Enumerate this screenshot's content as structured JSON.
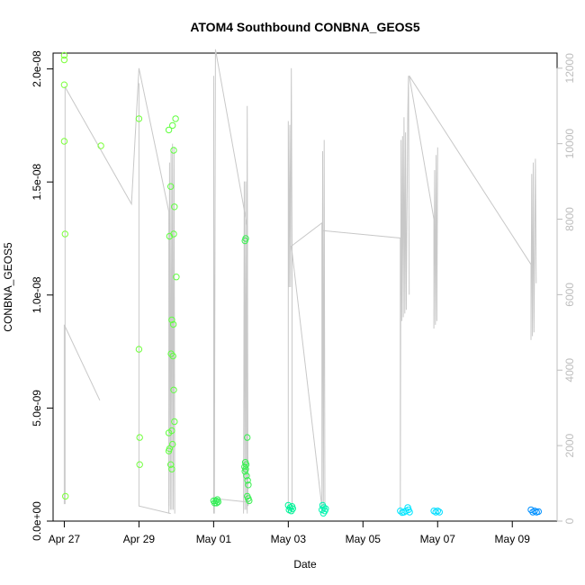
{
  "chart_data": {
    "type": "scatter",
    "title": "ATOM4 Southbound CONBNA_GEOS5",
    "xlabel": "Date",
    "ylabel": "CONBNA_GEOS5",
    "x_unit": "days",
    "xlim": [
      26.7,
      40.2
    ],
    "ylim": [
      0,
      2.07e-08
    ],
    "x_ticks": [
      {
        "value": 27,
        "label": "Apr 27"
      },
      {
        "value": 29,
        "label": "Apr 29"
      },
      {
        "value": 31,
        "label": "May 01"
      },
      {
        "value": 33,
        "label": "May 03"
      },
      {
        "value": 35,
        "label": "May 05"
      },
      {
        "value": 37,
        "label": "May 07"
      },
      {
        "value": 39,
        "label": "May 09"
      }
    ],
    "y_ticks": [
      {
        "value": 0,
        "label": "0.0e+00"
      },
      {
        "value": 5e-09,
        "label": "5.0e-09"
      },
      {
        "value": 1e-08,
        "label": "1.0e-08"
      },
      {
        "value": 1.5e-08,
        "label": "1.5e-08"
      },
      {
        "value": 2e-08,
        "label": "2.0e-08"
      }
    ],
    "y2lim": [
      0,
      12400
    ],
    "y2_ticks": [
      0,
      2000,
      4000,
      6000,
      8000,
      10000,
      12000
    ],
    "grid": false,
    "colors": {
      "altitude_line": "#c8c8c8",
      "green": "#7cff3a",
      "green_mid": "#33ee55",
      "teal": "#00ffaa",
      "cyan": "#00e5ff",
      "blue": "#0088ff"
    },
    "series": [
      {
        "role": "CONBNA_GEOS5 points",
        "points": [
          {
            "x": 27.0,
            "y": 2.06e-08,
            "c": "#7cff3a"
          },
          {
            "x": 27.0,
            "y": 2.04e-08,
            "c": "#7cff3a"
          },
          {
            "x": 27.0,
            "y": 1.93e-08,
            "c": "#7cff3a"
          },
          {
            "x": 27.0,
            "y": 1.68e-08,
            "c": "#7cff3a"
          },
          {
            "x": 27.02,
            "y": 1.27e-08,
            "c": "#7cff3a"
          },
          {
            "x": 27.03,
            "y": 1.1e-09,
            "c": "#7cff3a"
          },
          {
            "x": 27.98,
            "y": 1.66e-08,
            "c": "#7cff3a"
          },
          {
            "x": 29.0,
            "y": 1.78e-08,
            "c": "#70ff3c"
          },
          {
            "x": 29.0,
            "y": 7.6e-09,
            "c": "#70ff3c"
          },
          {
            "x": 29.02,
            "y": 3.7e-09,
            "c": "#70ff3c"
          },
          {
            "x": 29.02,
            "y": 2.5e-09,
            "c": "#70ff3c"
          },
          {
            "x": 29.8,
            "y": 1.73e-08,
            "c": "#60ff40"
          },
          {
            "x": 29.85,
            "y": 1.48e-08,
            "c": "#60ff40"
          },
          {
            "x": 29.82,
            "y": 1.26e-08,
            "c": "#60ff40"
          },
          {
            "x": 29.9,
            "y": 1.75e-08,
            "c": "#60ff40"
          },
          {
            "x": 29.98,
            "y": 1.78e-08,
            "c": "#60ff40"
          },
          {
            "x": 29.93,
            "y": 1.64e-08,
            "c": "#60ff40"
          },
          {
            "x": 29.95,
            "y": 1.39e-08,
            "c": "#60ff40"
          },
          {
            "x": 29.93,
            "y": 1.27e-08,
            "c": "#60ff40"
          },
          {
            "x": 30.0,
            "y": 1.08e-08,
            "c": "#60ff40"
          },
          {
            "x": 29.88,
            "y": 8.9e-09,
            "c": "#60ff40"
          },
          {
            "x": 29.92,
            "y": 8.7e-09,
            "c": "#60ff40"
          },
          {
            "x": 29.86,
            "y": 7.4e-09,
            "c": "#60ff40"
          },
          {
            "x": 29.91,
            "y": 7.3e-09,
            "c": "#60ff40"
          },
          {
            "x": 29.93,
            "y": 5.8e-09,
            "c": "#60ff40"
          },
          {
            "x": 29.95,
            "y": 4.4e-09,
            "c": "#60ff40"
          },
          {
            "x": 29.8,
            "y": 3.9e-09,
            "c": "#60ff40"
          },
          {
            "x": 29.88,
            "y": 4e-09,
            "c": "#60ff40"
          },
          {
            "x": 29.82,
            "y": 3.2e-09,
            "c": "#60ff40"
          },
          {
            "x": 29.9,
            "y": 3.4e-09,
            "c": "#60ff40"
          },
          {
            "x": 29.8,
            "y": 3.1e-09,
            "c": "#60ff40"
          },
          {
            "x": 29.85,
            "y": 2.5e-09,
            "c": "#60ff40"
          },
          {
            "x": 29.88,
            "y": 2.3e-09,
            "c": "#60ff40"
          },
          {
            "x": 31.0,
            "y": 9e-10,
            "c": "#33ee55"
          },
          {
            "x": 31.03,
            "y": 8e-10,
            "c": "#33ee55"
          },
          {
            "x": 31.06,
            "y": 9e-10,
            "c": "#33ee55"
          },
          {
            "x": 31.08,
            "y": 8e-10,
            "c": "#33ee55"
          },
          {
            "x": 31.1,
            "y": 9.5e-10,
            "c": "#33ee55"
          },
          {
            "x": 31.12,
            "y": 8.5e-10,
            "c": "#33ee55"
          },
          {
            "x": 31.84,
            "y": 1.24e-08,
            "c": "#38f050"
          },
          {
            "x": 31.86,
            "y": 1.25e-08,
            "c": "#38f050"
          },
          {
            "x": 31.9,
            "y": 3.7e-09,
            "c": "#38f050"
          },
          {
            "x": 31.85,
            "y": 2.6e-09,
            "c": "#38f050"
          },
          {
            "x": 31.87,
            "y": 2.5e-09,
            "c": "#38f050"
          },
          {
            "x": 31.83,
            "y": 2.4e-09,
            "c": "#38f050"
          },
          {
            "x": 31.86,
            "y": 2.3e-09,
            "c": "#38f050"
          },
          {
            "x": 31.84,
            "y": 2.2e-09,
            "c": "#38f050"
          },
          {
            "x": 31.88,
            "y": 2e-09,
            "c": "#38f050"
          },
          {
            "x": 31.91,
            "y": 1.8e-09,
            "c": "#38f050"
          },
          {
            "x": 31.93,
            "y": 1.6e-09,
            "c": "#38f050"
          },
          {
            "x": 31.9,
            "y": 1.1e-09,
            "c": "#38f050"
          },
          {
            "x": 31.93,
            "y": 1e-09,
            "c": "#38f050"
          },
          {
            "x": 31.95,
            "y": 9e-10,
            "c": "#38f050"
          },
          {
            "x": 33.0,
            "y": 7e-10,
            "c": "#00f59a"
          },
          {
            "x": 33.05,
            "y": 6e-10,
            "c": "#00f59a"
          },
          {
            "x": 33.1,
            "y": 6.5e-10,
            "c": "#00f59a"
          },
          {
            "x": 33.02,
            "y": 5e-10,
            "c": "#00f59a"
          },
          {
            "x": 33.08,
            "y": 4.5e-10,
            "c": "#00f59a"
          },
          {
            "x": 33.12,
            "y": 5.5e-10,
            "c": "#00f59a"
          },
          {
            "x": 33.92,
            "y": 7e-10,
            "c": "#00f5b0"
          },
          {
            "x": 33.95,
            "y": 6e-10,
            "c": "#00f5b0"
          },
          {
            "x": 33.9,
            "y": 5e-10,
            "c": "#00f5b0"
          },
          {
            "x": 33.98,
            "y": 4.5e-10,
            "c": "#00f5b0"
          },
          {
            "x": 33.94,
            "y": 3.5e-10,
            "c": "#00f5b0"
          },
          {
            "x": 34.0,
            "y": 5.5e-10,
            "c": "#00f5b0"
          },
          {
            "x": 36.0,
            "y": 4.5e-10,
            "c": "#00e5ff"
          },
          {
            "x": 36.05,
            "y": 3.8e-10,
            "c": "#00e5ff"
          },
          {
            "x": 36.1,
            "y": 4e-10,
            "c": "#00e5ff"
          },
          {
            "x": 36.15,
            "y": 4.5e-10,
            "c": "#00e5ff"
          },
          {
            "x": 36.2,
            "y": 6e-10,
            "c": "#00e5ff"
          },
          {
            "x": 36.22,
            "y": 5e-10,
            "c": "#00e5ff"
          },
          {
            "x": 36.25,
            "y": 4e-10,
            "c": "#00e5ff"
          },
          {
            "x": 36.9,
            "y": 4.5e-10,
            "c": "#00ddff"
          },
          {
            "x": 36.95,
            "y": 4e-10,
            "c": "#00ddff"
          },
          {
            "x": 37.0,
            "y": 4.5e-10,
            "c": "#00ddff"
          },
          {
            "x": 37.05,
            "y": 4e-10,
            "c": "#00ddff"
          },
          {
            "x": 39.5,
            "y": 5e-10,
            "c": "#0090ff"
          },
          {
            "x": 39.55,
            "y": 4e-10,
            "c": "#0090ff"
          },
          {
            "x": 39.6,
            "y": 4.5e-10,
            "c": "#0090ff"
          },
          {
            "x": 39.65,
            "y": 4e-10,
            "c": "#0090ff"
          },
          {
            "x": 39.7,
            "y": 4.2e-10,
            "c": "#0090ff"
          }
        ]
      },
      {
        "role": "altitude (right axis)",
        "y_axis": "right",
        "segments": [
          [
            [
              27.0,
              5200
            ],
            [
              27.0,
              450
            ],
            [
              27.0,
              5200
            ],
            [
              27.95,
              3200
            ]
          ],
          [
            [
              27.02,
              450
            ],
            [
              27.02,
              11500
            ],
            [
              28.8,
              8400
            ],
            [
              29.0,
              12000
            ],
            [
              29.8,
              8200
            ],
            [
              29.8,
              400
            ]
          ],
          [
            [
              29.0,
              400
            ],
            [
              29.0,
              11600
            ],
            [
              29.0,
              400
            ],
            [
              29.85,
              200
            ]
          ],
          [
            [
              29.8,
              200
            ],
            [
              29.82,
              9500
            ],
            [
              29.84,
              300
            ],
            [
              29.86,
              9800
            ],
            [
              29.88,
              300
            ],
            [
              29.9,
              10000
            ],
            [
              29.92,
              300
            ],
            [
              29.94,
              9900
            ],
            [
              29.96,
              200
            ]
          ],
          [
            [
              31.0,
              200
            ],
            [
              31.0,
              11800
            ],
            [
              31.02,
              200
            ],
            [
              31.05,
              12500
            ],
            [
              31.9,
              7800
            ],
            [
              31.9,
              200
            ]
          ],
          [
            [
              31.8,
              200
            ],
            [
              31.82,
              9000
            ],
            [
              31.84,
              300
            ],
            [
              31.86,
              9000
            ],
            [
              31.88,
              300
            ],
            [
              31.9,
              11000
            ],
            [
              31.92,
              400
            ],
            [
              31.94,
              500
            ],
            [
              31.0,
              600
            ]
          ],
          [
            [
              33.0,
              200
            ],
            [
              33.0,
              10600
            ],
            [
              33.02,
              6200
            ],
            [
              33.04,
              10500
            ],
            [
              33.06,
              6200
            ],
            [
              33.08,
              12000
            ],
            [
              33.1,
              7300
            ],
            [
              33.1,
              200
            ]
          ],
          [
            [
              33.1,
              7300
            ],
            [
              33.9,
              7900
            ],
            [
              33.9,
              200
            ],
            [
              33.92,
              9800
            ],
            [
              33.94,
              300
            ],
            [
              33.96,
              10100
            ],
            [
              33.98,
              300
            ]
          ],
          [
            [
              33.08,
              7300
            ],
            [
              33.92,
              200
            ]
          ],
          [
            [
              33.9,
              7700
            ],
            [
              36.0,
              7500
            ],
            [
              36.0,
              200
            ],
            [
              36.02,
              10100
            ],
            [
              36.04,
              5300
            ],
            [
              36.06,
              10200
            ],
            [
              36.08,
              5400
            ],
            [
              36.1,
              10700
            ],
            [
              36.12,
              5500
            ],
            [
              36.14,
              10300
            ],
            [
              36.16,
              5600
            ],
            [
              36.2,
              10800
            ],
            [
              36.22,
              11800
            ],
            [
              36.24,
              6000
            ]
          ],
          [
            [
              36.24,
              11800
            ],
            [
              36.9,
              8000
            ],
            [
              36.9,
              5100
            ],
            [
              36.92,
              9300
            ],
            [
              36.94,
              5200
            ],
            [
              36.96,
              9700
            ],
            [
              36.98,
              5300
            ],
            [
              37.0,
              9900
            ]
          ],
          [
            [
              36.24,
              11800
            ],
            [
              39.5,
              6800
            ],
            [
              39.5,
              4800
            ],
            [
              39.52,
              9200
            ],
            [
              39.54,
              4900
            ],
            [
              39.56,
              9500
            ],
            [
              39.58,
              5000
            ],
            [
              39.62,
              9600
            ],
            [
              39.64,
              6300
            ]
          ]
        ]
      }
    ]
  }
}
